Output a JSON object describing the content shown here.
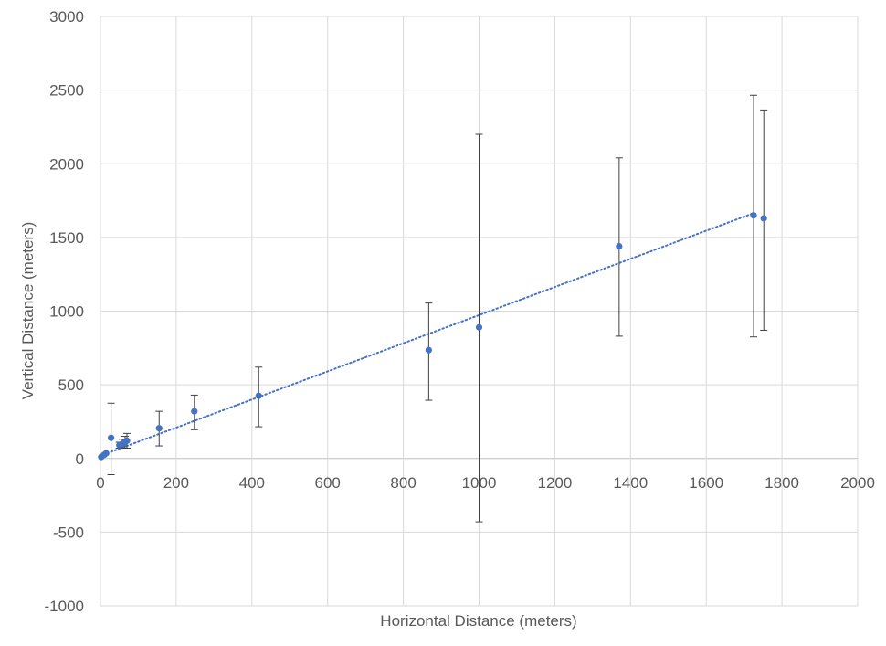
{
  "chart_data": {
    "type": "scatter",
    "xlabel": "Horizontal Distance (meters)",
    "ylabel": "Vertical Distance (meters)",
    "xlim": [
      0,
      2000
    ],
    "ylim": [
      -1000,
      3000
    ],
    "x_ticks": [
      0,
      200,
      400,
      600,
      800,
      1000,
      1200,
      1400,
      1600,
      1800,
      2000
    ],
    "y_ticks": [
      -1000,
      -500,
      0,
      500,
      1000,
      1500,
      2000,
      2500,
      3000
    ],
    "grid": true,
    "legend": "none",
    "marker_color": "#4472C4",
    "errorbar_color": "#404040",
    "trendline": {
      "style": "dotted",
      "color": "#4472C4",
      "x": [
        28,
        1725
      ],
      "y": [
        45,
        1665
      ]
    },
    "points": [
      {
        "x": 2,
        "y": 10,
        "err_low": 0,
        "err_high": 0
      },
      {
        "x": 10,
        "y": 25,
        "err_low": 0,
        "err_high": 0
      },
      {
        "x": 15,
        "y": 35,
        "err_low": 0,
        "err_high": 0
      },
      {
        "x": 28,
        "y": 140,
        "err_low": 250,
        "err_high": 235
      },
      {
        "x": 50,
        "y": 90,
        "err_low": 20,
        "err_high": 20
      },
      {
        "x": 58,
        "y": 100,
        "err_low": 30,
        "err_high": 30
      },
      {
        "x": 65,
        "y": 110,
        "err_low": 40,
        "err_high": 40
      },
      {
        "x": 70,
        "y": 120,
        "err_low": 50,
        "err_high": 50
      },
      {
        "x": 155,
        "y": 205,
        "err_low": 120,
        "err_high": 115
      },
      {
        "x": 248,
        "y": 320,
        "err_low": 125,
        "err_high": 110
      },
      {
        "x": 418,
        "y": 425,
        "err_low": 210,
        "err_high": 195
      },
      {
        "x": 867,
        "y": 735,
        "err_low": 340,
        "err_high": 320
      },
      {
        "x": 1000,
        "y": 890,
        "err_low": 1320,
        "err_high": 1310
      },
      {
        "x": 1370,
        "y": 1440,
        "err_low": 610,
        "err_high": 600
      },
      {
        "x": 1725,
        "y": 1650,
        "err_low": 825,
        "err_high": 815
      },
      {
        "x": 1752,
        "y": 1630,
        "err_low": 760,
        "err_high": 735
      }
    ]
  }
}
